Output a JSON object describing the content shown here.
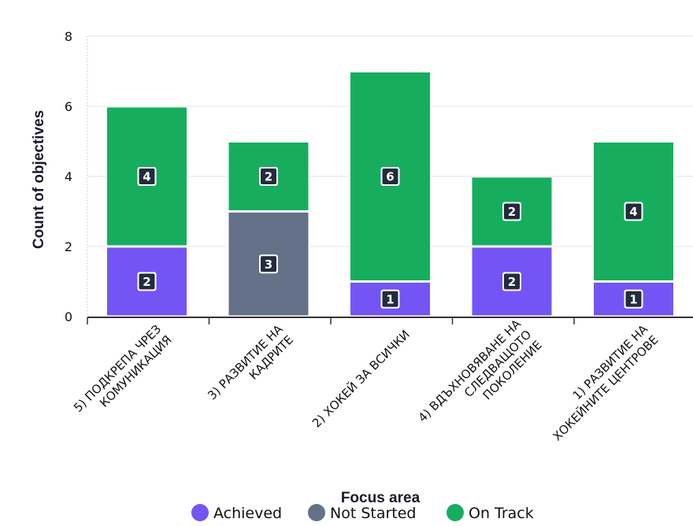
{
  "chart_data": {
    "type": "bar",
    "stacked": true,
    "categories": [
      [
        "5) ПОДКРЕПА ЧРЕЗ",
        "КОМУНИКАЦИЯ"
      ],
      [
        "3) РАЗВИТИЕ НА",
        "КАДРИТЕ"
      ],
      [
        "2) ХОКЕЙ ЗА ВСИЧКИ"
      ],
      [
        "4) ВДЪХНОВЯВАНЕ НА",
        "СЛЕДВАЩОТО",
        "ПОКОЛЕНИЕ"
      ],
      [
        "1) РАЗВИТИЕ НА",
        "ХОКЕЙНИТЕ ЦЕНТРОВЕ"
      ]
    ],
    "series": [
      {
        "name": "Achieved",
        "color": "#7355f5",
        "values": [
          2,
          0,
          1,
          2,
          1
        ]
      },
      {
        "name": "Not Started",
        "color": "#657089",
        "values": [
          0,
          3,
          0,
          0,
          0
        ]
      },
      {
        "name": "On Track",
        "color": "#17ad5f",
        "values": [
          4,
          2,
          6,
          2,
          4
        ]
      }
    ],
    "title": "",
    "xlabel": "Focus area",
    "ylabel": "Count of objectives",
    "ylim": [
      0,
      8
    ],
    "yticks": [
      "0",
      "2",
      "4",
      "6",
      "8"
    ],
    "grid": true,
    "legend_position": "bottom"
  }
}
